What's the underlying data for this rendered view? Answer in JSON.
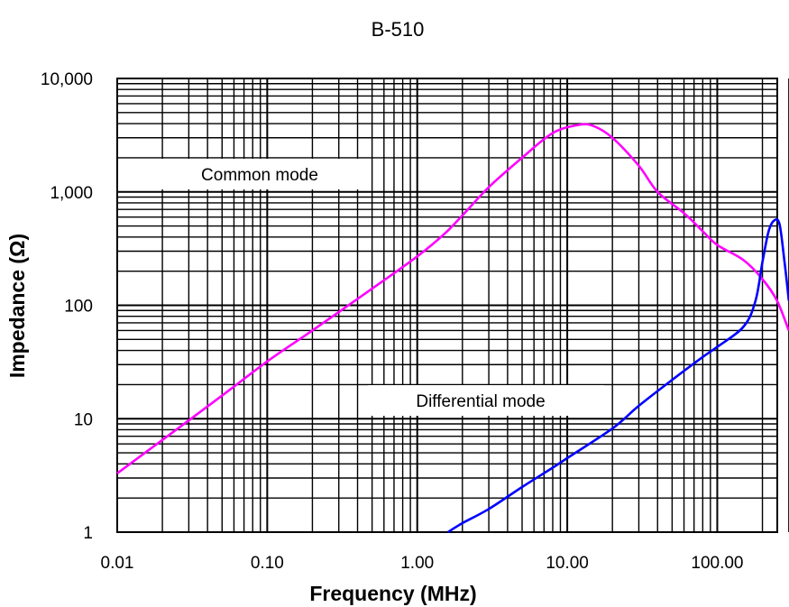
{
  "chart_data": {
    "type": "line",
    "title": "B-510",
    "xlabel": "Frequency (MHz)",
    "ylabel": "Impedance (Ω)",
    "xscale": "log",
    "yscale": "log",
    "xlim": [
      0.01,
      300
    ],
    "ylim": [
      1,
      10000
    ],
    "grid": true,
    "x_tick_labels": [
      {
        "value": 0.01,
        "label": "0.01"
      },
      {
        "value": 0.1,
        "label": "0.10"
      },
      {
        "value": 1,
        "label": "1.00"
      },
      {
        "value": 10,
        "label": "10.00"
      },
      {
        "value": 100,
        "label": "100.00"
      }
    ],
    "y_tick_labels": [
      {
        "value": 1,
        "label": "1"
      },
      {
        "value": 10,
        "label": "10"
      },
      {
        "value": 100,
        "label": "100"
      },
      {
        "value": 1000,
        "label": "1,000"
      },
      {
        "value": 10000,
        "label": "10,000"
      }
    ],
    "series": [
      {
        "name": "Common mode",
        "color": "#ff00ff",
        "points": [
          [
            0.01,
            3.3
          ],
          [
            0.02,
            6.5
          ],
          [
            0.05,
            16
          ],
          [
            0.1,
            32
          ],
          [
            0.2,
            60
          ],
          [
            0.5,
            140
          ],
          [
            1,
            270
          ],
          [
            1.5,
            420
          ],
          [
            2,
            620
          ],
          [
            3,
            1100
          ],
          [
            5,
            2000
          ],
          [
            8,
            3300
          ],
          [
            12,
            3900
          ],
          [
            15,
            3800
          ],
          [
            20,
            3000
          ],
          [
            30,
            1700
          ],
          [
            40,
            1000
          ],
          [
            60,
            650
          ],
          [
            80,
            450
          ],
          [
            100,
            340
          ],
          [
            150,
            250
          ],
          [
            200,
            170
          ],
          [
            250,
            110
          ],
          [
            300,
            60
          ]
        ]
      },
      {
        "name": "Differential mode",
        "color": "#0000ff",
        "points": [
          [
            1.6,
            1
          ],
          [
            2,
            1.2
          ],
          [
            3,
            1.6
          ],
          [
            5,
            2.5
          ],
          [
            8,
            3.7
          ],
          [
            10,
            4.5
          ],
          [
            20,
            8.2
          ],
          [
            30,
            13
          ],
          [
            50,
            22
          ],
          [
            80,
            35
          ],
          [
            100,
            43
          ],
          [
            150,
            65
          ],
          [
            180,
            110
          ],
          [
            200,
            240
          ],
          [
            220,
            450
          ],
          [
            240,
            560
          ],
          [
            260,
            520
          ],
          [
            280,
            250
          ],
          [
            300,
            110
          ]
        ]
      }
    ],
    "annotations": [
      {
        "text": "Common mode",
        "series": "Common mode"
      },
      {
        "text": "Differential mode",
        "series": "Differential mode"
      }
    ]
  }
}
